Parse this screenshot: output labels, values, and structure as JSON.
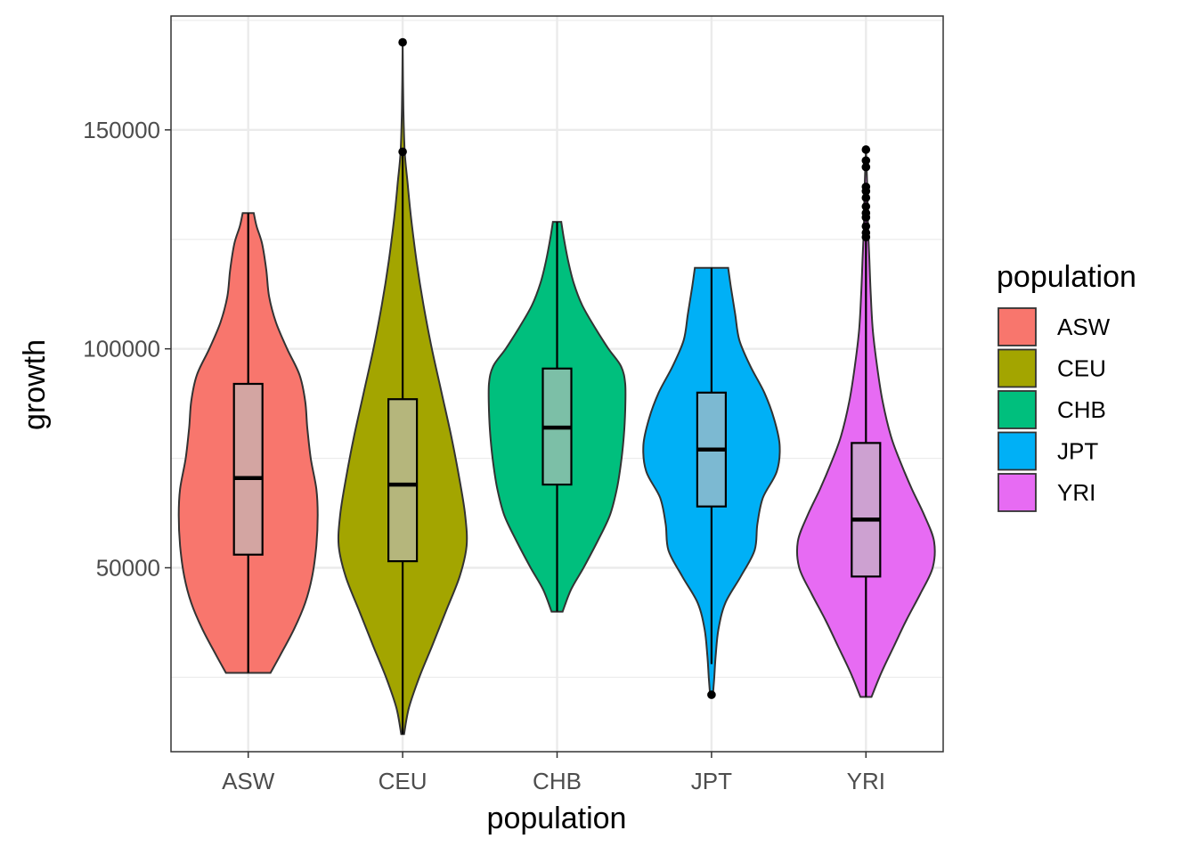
{
  "chart_data": {
    "type": "violin",
    "title": "",
    "xlabel": "population",
    "ylabel": "growth",
    "ylim": [
      8000,
      176000
    ],
    "yticks": [
      50000,
      100000,
      150000
    ],
    "categories": [
      "ASW",
      "CEU",
      "CHB",
      "JPT",
      "YRI"
    ],
    "legend": {
      "title": "population",
      "position": "right"
    },
    "grid": true,
    "series": [
      {
        "name": "ASW",
        "color": "#F8766D",
        "range": [
          26000,
          131000
        ],
        "box": {
          "q1": 53000,
          "median": 70500,
          "q3": 92000,
          "whisker_low": 26000,
          "whisker_high": 131000
        },
        "outliers": [],
        "density": [
          [
            26000,
            0.32
          ],
          [
            30000,
            0.46
          ],
          [
            36000,
            0.66
          ],
          [
            42000,
            0.82
          ],
          [
            48000,
            0.92
          ],
          [
            55000,
            0.98
          ],
          [
            62000,
            1.0
          ],
          [
            68000,
            0.98
          ],
          [
            75000,
            0.9
          ],
          [
            82000,
            0.85
          ],
          [
            88000,
            0.82
          ],
          [
            94000,
            0.74
          ],
          [
            100000,
            0.56
          ],
          [
            106000,
            0.4
          ],
          [
            112000,
            0.3
          ],
          [
            118000,
            0.26
          ],
          [
            124000,
            0.2
          ],
          [
            128000,
            0.12
          ],
          [
            131000,
            0.08
          ]
        ]
      },
      {
        "name": "CEU",
        "color": "#A3A500",
        "range": [
          12000,
          170000
        ],
        "box": {
          "q1": 51500,
          "median": 69000,
          "q3": 88500,
          "whisker_low": 12000,
          "whisker_high": 145000
        },
        "outliers": [
          145000,
          170000
        ],
        "density": [
          [
            12000,
            0.02
          ],
          [
            18000,
            0.09
          ],
          [
            25000,
            0.24
          ],
          [
            32000,
            0.42
          ],
          [
            40000,
            0.62
          ],
          [
            48000,
            0.82
          ],
          [
            55000,
            0.92
          ],
          [
            62000,
            0.9
          ],
          [
            70000,
            0.82
          ],
          [
            80000,
            0.7
          ],
          [
            90000,
            0.56
          ],
          [
            100000,
            0.42
          ],
          [
            110000,
            0.3
          ],
          [
            120000,
            0.2
          ],
          [
            130000,
            0.12
          ],
          [
            138000,
            0.07
          ],
          [
            145000,
            0.03
          ],
          [
            155000,
            0.01
          ],
          [
            170000,
            0.0
          ]
        ]
      },
      {
        "name": "CHB",
        "color": "#00BF7D",
        "range": [
          40000,
          129000
        ],
        "box": {
          "q1": 69000,
          "median": 82000,
          "q3": 95500,
          "whisker_low": 40000,
          "whisker_high": 129000
        },
        "outliers": [],
        "density": [
          [
            40000,
            0.08
          ],
          [
            45000,
            0.2
          ],
          [
            50000,
            0.38
          ],
          [
            56000,
            0.58
          ],
          [
            62000,
            0.76
          ],
          [
            68000,
            0.86
          ],
          [
            74000,
            0.92
          ],
          [
            80000,
            0.96
          ],
          [
            86000,
            0.98
          ],
          [
            92000,
            0.98
          ],
          [
            96000,
            0.92
          ],
          [
            100000,
            0.74
          ],
          [
            105000,
            0.54
          ],
          [
            110000,
            0.36
          ],
          [
            115000,
            0.24
          ],
          [
            120000,
            0.16
          ],
          [
            125000,
            0.1
          ],
          [
            129000,
            0.06
          ]
        ]
      },
      {
        "name": "JPT",
        "color": "#00B0F6",
        "range": [
          21000,
          118500
        ],
        "box": {
          "q1": 64000,
          "median": 77000,
          "q3": 90000,
          "whisker_low": 28000,
          "whisker_high": 118500
        },
        "outliers": [
          21000
        ],
        "density": [
          [
            21000,
            0.02
          ],
          [
            25000,
            0.04
          ],
          [
            30000,
            0.06
          ],
          [
            36000,
            0.1
          ],
          [
            42000,
            0.2
          ],
          [
            48000,
            0.42
          ],
          [
            54000,
            0.62
          ],
          [
            60000,
            0.66
          ],
          [
            66000,
            0.74
          ],
          [
            72000,
            0.94
          ],
          [
            78000,
            0.98
          ],
          [
            84000,
            0.9
          ],
          [
            90000,
            0.76
          ],
          [
            96000,
            0.56
          ],
          [
            102000,
            0.4
          ],
          [
            108000,
            0.34
          ],
          [
            114000,
            0.28
          ],
          [
            118500,
            0.24
          ]
        ]
      },
      {
        "name": "YRI",
        "color": "#E76BF3",
        "range": [
          20500,
          145500
        ],
        "box": {
          "q1": 48000,
          "median": 61000,
          "q3": 78500,
          "whisker_low": 20500,
          "whisker_high": 125000
        },
        "outliers": [
          125500,
          126500,
          128000,
          130000,
          131000,
          132500,
          134500,
          136000,
          137000,
          141500,
          143000,
          145500
        ],
        "density": [
          [
            20500,
            0.08
          ],
          [
            26000,
            0.22
          ],
          [
            32000,
            0.4
          ],
          [
            38000,
            0.58
          ],
          [
            44000,
            0.78
          ],
          [
            50000,
            0.96
          ],
          [
            56000,
            0.98
          ],
          [
            62000,
            0.84
          ],
          [
            68000,
            0.66
          ],
          [
            74000,
            0.5
          ],
          [
            80000,
            0.36
          ],
          [
            88000,
            0.24
          ],
          [
            96000,
            0.16
          ],
          [
            104000,
            0.1
          ],
          [
            112000,
            0.07
          ],
          [
            120000,
            0.05
          ],
          [
            128000,
            0.03
          ],
          [
            136000,
            0.02
          ],
          [
            145500,
            0.0
          ]
        ]
      }
    ]
  }
}
